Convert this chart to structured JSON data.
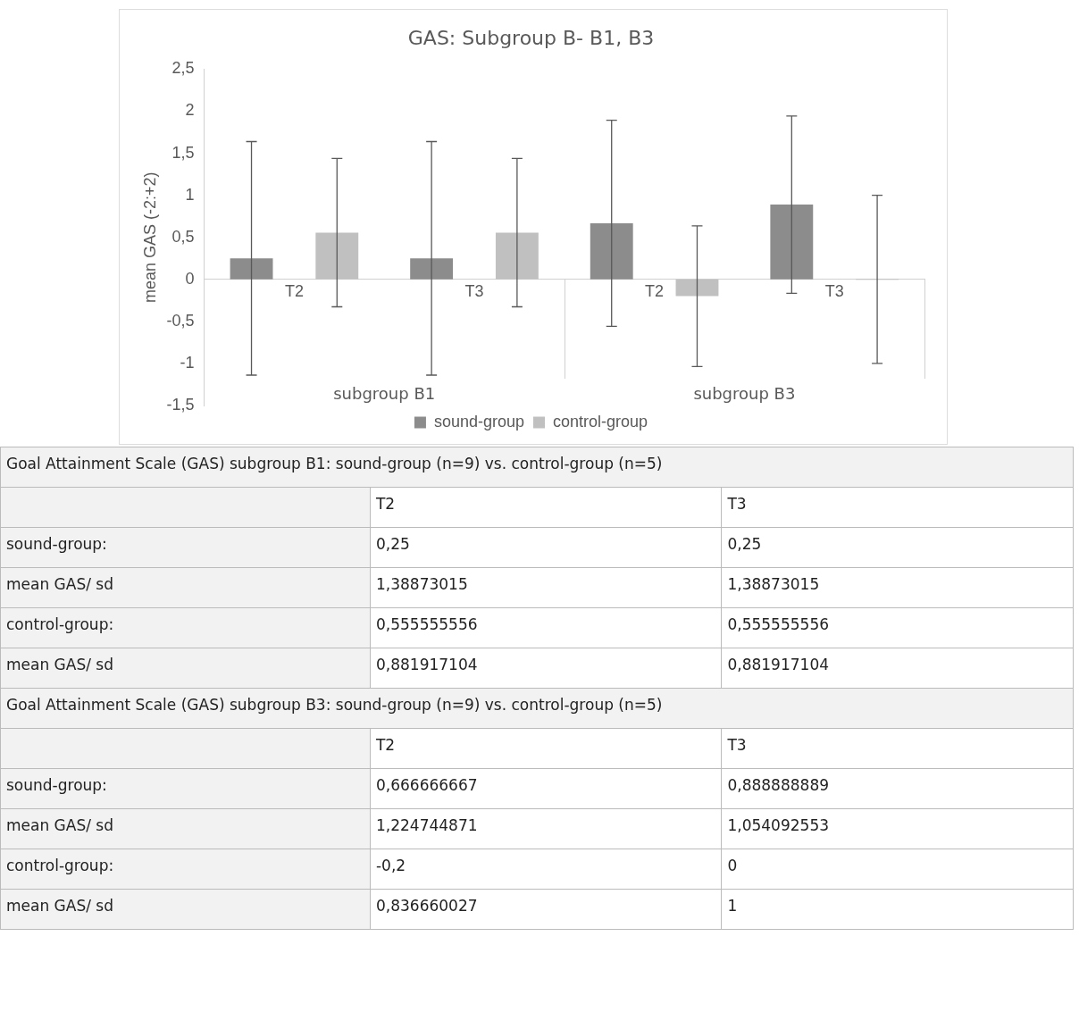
{
  "chart_data": {
    "type": "bar",
    "title": "GAS: Subgroup B- B1, B3",
    "ylabel": "mean GAS (-2:+2)",
    "categories": [
      "T2",
      "T3",
      "T2",
      "T3"
    ],
    "series": [
      {
        "name": "sound-group",
        "color": "#8c8c8c",
        "values": [
          0.25,
          0.25,
          0.666666667,
          0.888888889
        ],
        "errors": [
          1.38873015,
          1.38873015,
          1.224744871,
          1.054092553
        ]
      },
      {
        "name": "control-group",
        "color": "#c0c0c0",
        "values": [
          0.555555556,
          0.555555556,
          -0.2,
          0
        ],
        "errors": [
          0.881917104,
          0.881917104,
          0.836660027,
          1
        ]
      }
    ],
    "ylim": [
      -1.5,
      2.5
    ],
    "yticks": [
      {
        "value": -1.5,
        "label": "-1,5"
      },
      {
        "value": -1,
        "label": "-1"
      },
      {
        "value": -0.5,
        "label": "-0,5"
      },
      {
        "value": 0,
        "label": "0"
      },
      {
        "value": 0.5,
        "label": "0,5"
      },
      {
        "value": 1,
        "label": "1"
      },
      {
        "value": 1.5,
        "label": "1,5"
      },
      {
        "value": 2,
        "label": "2"
      },
      {
        "value": 2.5,
        "label": "2,5"
      }
    ],
    "grid": false,
    "legend": "bottom",
    "annotations": [
      "subgroup B1",
      "subgroup B3",
      "Goal Attainment Scale (GAS) subgroup B1: sound-group (n=9) vs. control-group (n=5)",
      "Goal Attainment Scale (GAS) subgroup B3: sound-group (n=9) vs. control-group (n=5)",
      "mean GAS/ sd",
      "1,38873015",
      "1,38873015",
      "1,224744871",
      "1,054092553",
      "0,881917104",
      "0,881917104",
      "0,836660027",
      "1",
      "sound-group:",
      "control-group:",
      "0,25",
      "0,25",
      "0,666666667",
      "0,888888889",
      "0,555555556",
      "0,555555556",
      "-0,2",
      "0"
    ]
  }
}
